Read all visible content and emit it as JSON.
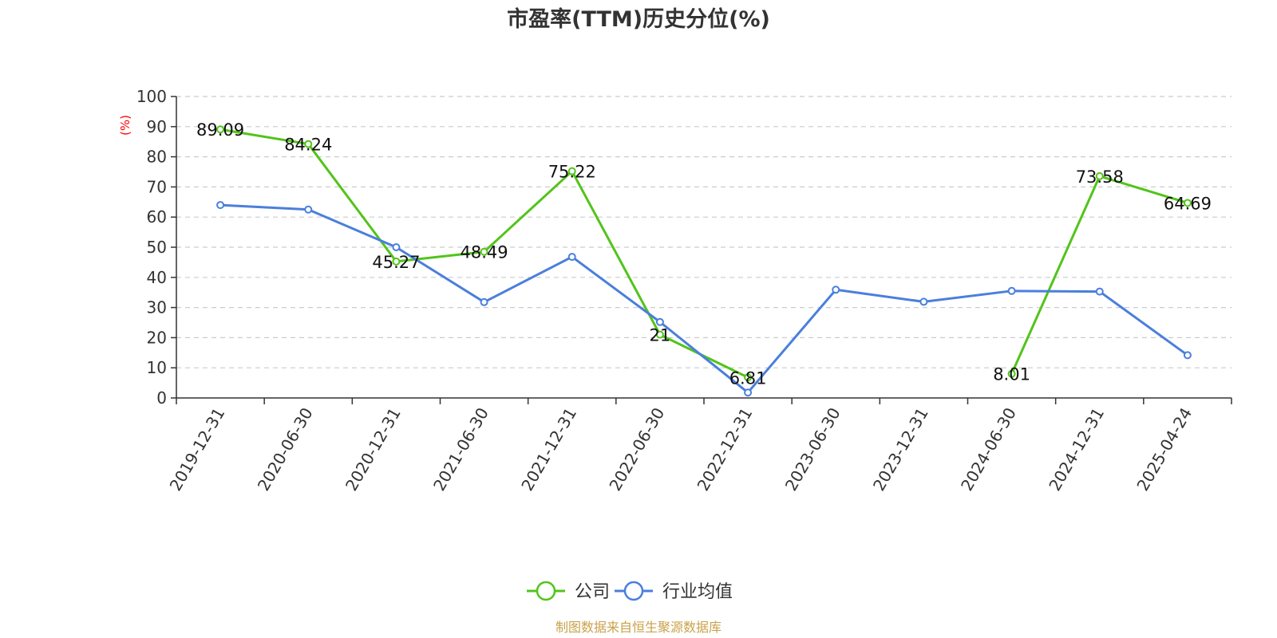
{
  "chart_data": {
    "type": "line",
    "title": "市盈率(TTM)历史分位(%)",
    "ylabel": "(%)",
    "ylim": [
      0,
      100
    ],
    "yticks": [
      0,
      10,
      20,
      30,
      40,
      50,
      60,
      70,
      80,
      90,
      100
    ],
    "categories": [
      "2019-12-31",
      "2020-06-30",
      "2020-12-31",
      "2021-06-30",
      "2021-12-31",
      "2022-06-30",
      "2022-12-31",
      "2023-06-30",
      "2023-12-31",
      "2024-06-30",
      "2024-12-31",
      "2025-04-24"
    ],
    "grid": true,
    "legend_position": "bottom",
    "series": [
      {
        "name": "公司",
        "color": "#52c41a",
        "labels": true,
        "values": [
          89.09,
          84.24,
          45.27,
          48.49,
          75.22,
          21,
          6.81,
          null,
          null,
          8.01,
          73.58,
          64.69
        ]
      },
      {
        "name": "行业均值",
        "color": "#4a7fdc",
        "labels": false,
        "values": [
          64,
          62.5,
          50,
          31.8,
          46.8,
          25.2,
          1.8,
          35.9,
          31.9,
          35.5,
          35.3,
          14.2
        ]
      }
    ],
    "source": "制图数据来自恒生聚源数据库"
  },
  "colors": {
    "axis": "#333333",
    "grid": "#cccccc",
    "ylabel": "#ff0000",
    "source": "#c9a24a"
  }
}
